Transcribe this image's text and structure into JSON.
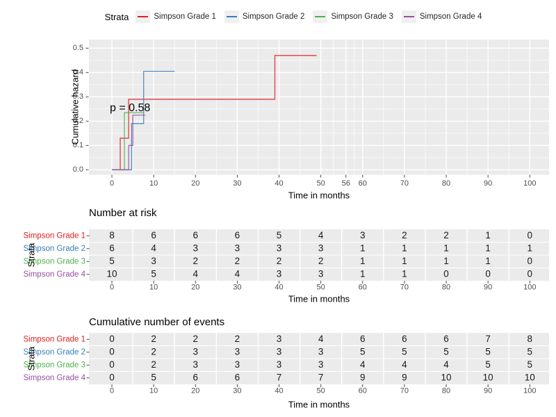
{
  "palette": {
    "grade1": "#E41A1C",
    "grade2": "#377EB8",
    "grade3": "#4DAF4A",
    "grade4": "#984EA3",
    "panel_bg": "#EBEBEB",
    "grid": "#FFFFFF",
    "tick_text": "#4D4D4D",
    "tick_mark": "#333333"
  },
  "legend": {
    "title": "Strata",
    "items": [
      {
        "label": "Simpson Grade 1",
        "color": "#E41A1C"
      },
      {
        "label": "Simpson Grade 2",
        "color": "#377EB8"
      },
      {
        "label": "Simpson Grade 3",
        "color": "#4DAF4A"
      },
      {
        "label": "Simpson Grade 4",
        "color": "#984EA3"
      }
    ]
  },
  "chart_data": {
    "type": "line",
    "subtype": "step-cumulative-hazard",
    "p_value": "p = 0.58",
    "xlabel": "Time in months",
    "ylabel": "Cumulative hazard",
    "xlim": [
      0,
      100
    ],
    "ylim": [
      0,
      0.5
    ],
    "grid": true,
    "legend_position": "top",
    "x_axis": {
      "major_breaks": [
        0,
        10,
        20,
        30,
        40,
        50,
        56,
        60,
        70,
        80,
        90,
        100
      ],
      "tick_labels": [
        "0",
        "10",
        "20",
        "30",
        "40",
        "50",
        "56",
        "60",
        "70",
        "80",
        "90",
        "100"
      ],
      "minor_breaks": [
        5,
        15,
        25,
        35,
        45,
        53,
        58,
        65,
        75,
        85,
        95
      ]
    },
    "y_axis": {
      "major_breaks": [
        0,
        0.1,
        0.2,
        0.3,
        0.4,
        0.5
      ],
      "tick_labels": [
        "0.0",
        "0.1",
        "0.2",
        "0.3",
        "0.4",
        "0.5"
      ],
      "minor_breaks": [
        0.05,
        0.15,
        0.25,
        0.35,
        0.45
      ]
    },
    "series": [
      {
        "name": "Simpson Grade 1",
        "color": "#E41A1C",
        "points": [
          [
            0,
            0
          ],
          [
            2,
            0
          ],
          [
            2,
            0.13
          ],
          [
            4,
            0.13
          ],
          [
            4,
            0.29
          ],
          [
            39,
            0.29
          ],
          [
            39,
            0.47
          ],
          [
            49,
            0.47
          ]
        ]
      },
      {
        "name": "Simpson Grade 2",
        "color": "#377EB8",
        "points": [
          [
            0,
            0
          ],
          [
            4.7,
            0
          ],
          [
            4.7,
            0.19
          ],
          [
            7.6,
            0.19
          ],
          [
            7.6,
            0.405
          ],
          [
            15,
            0.405
          ]
        ]
      },
      {
        "name": "Simpson Grade 3",
        "color": "#4DAF4A",
        "points": [
          [
            0,
            0
          ],
          [
            3,
            0
          ],
          [
            3,
            0.235
          ],
          [
            7.6,
            0.235
          ]
        ]
      },
      {
        "name": "Simpson Grade 4",
        "color": "#984EA3",
        "points": [
          [
            0,
            0
          ],
          [
            4,
            0
          ],
          [
            4,
            0.1
          ],
          [
            5,
            0.1
          ],
          [
            5,
            0.225
          ],
          [
            8,
            0.225
          ]
        ]
      }
    ]
  },
  "risk_table": {
    "title": "Number at risk",
    "y_label": "Strata",
    "x_label": "Time in months",
    "time_points": [
      0,
      10,
      20,
      30,
      40,
      50,
      60,
      70,
      80,
      90,
      100
    ],
    "rows": [
      {
        "label": "Simpson Grade 1",
        "color": "#E41A1C",
        "values": [
          8,
          6,
          6,
          6,
          5,
          4,
          3,
          2,
          2,
          1,
          0
        ]
      },
      {
        "label": "Simpson Grade 2",
        "color": "#377EB8",
        "values": [
          6,
          4,
          3,
          3,
          3,
          3,
          1,
          1,
          1,
          1,
          1
        ]
      },
      {
        "label": "Simpson Grade 3",
        "color": "#4DAF4A",
        "values": [
          5,
          3,
          2,
          2,
          2,
          2,
          1,
          1,
          1,
          1,
          0
        ]
      },
      {
        "label": "Simpson Grade 4",
        "color": "#984EA3",
        "values": [
          10,
          5,
          4,
          4,
          3,
          3,
          1,
          1,
          0,
          0,
          0
        ]
      }
    ]
  },
  "events_table": {
    "title": "Cumulative number of events",
    "y_label": "Strata",
    "x_label": "Time in months",
    "time_points": [
      0,
      10,
      20,
      30,
      40,
      50,
      60,
      70,
      80,
      90,
      100
    ],
    "rows": [
      {
        "label": "Simpson Grade 1",
        "color": "#E41A1C",
        "values": [
          0,
          2,
          2,
          2,
          3,
          4,
          6,
          6,
          6,
          7,
          8
        ]
      },
      {
        "label": "Simpson Grade 2",
        "color": "#377EB8",
        "values": [
          0,
          2,
          3,
          3,
          3,
          3,
          5,
          5,
          5,
          5,
          5
        ]
      },
      {
        "label": "Simpson Grade 3",
        "color": "#4DAF4A",
        "values": [
          0,
          2,
          3,
          3,
          3,
          3,
          4,
          4,
          4,
          5,
          5
        ]
      },
      {
        "label": "Simpson Grade 4",
        "color": "#984EA3",
        "values": [
          0,
          5,
          6,
          6,
          7,
          7,
          9,
          9,
          10,
          10,
          10
        ]
      }
    ]
  }
}
